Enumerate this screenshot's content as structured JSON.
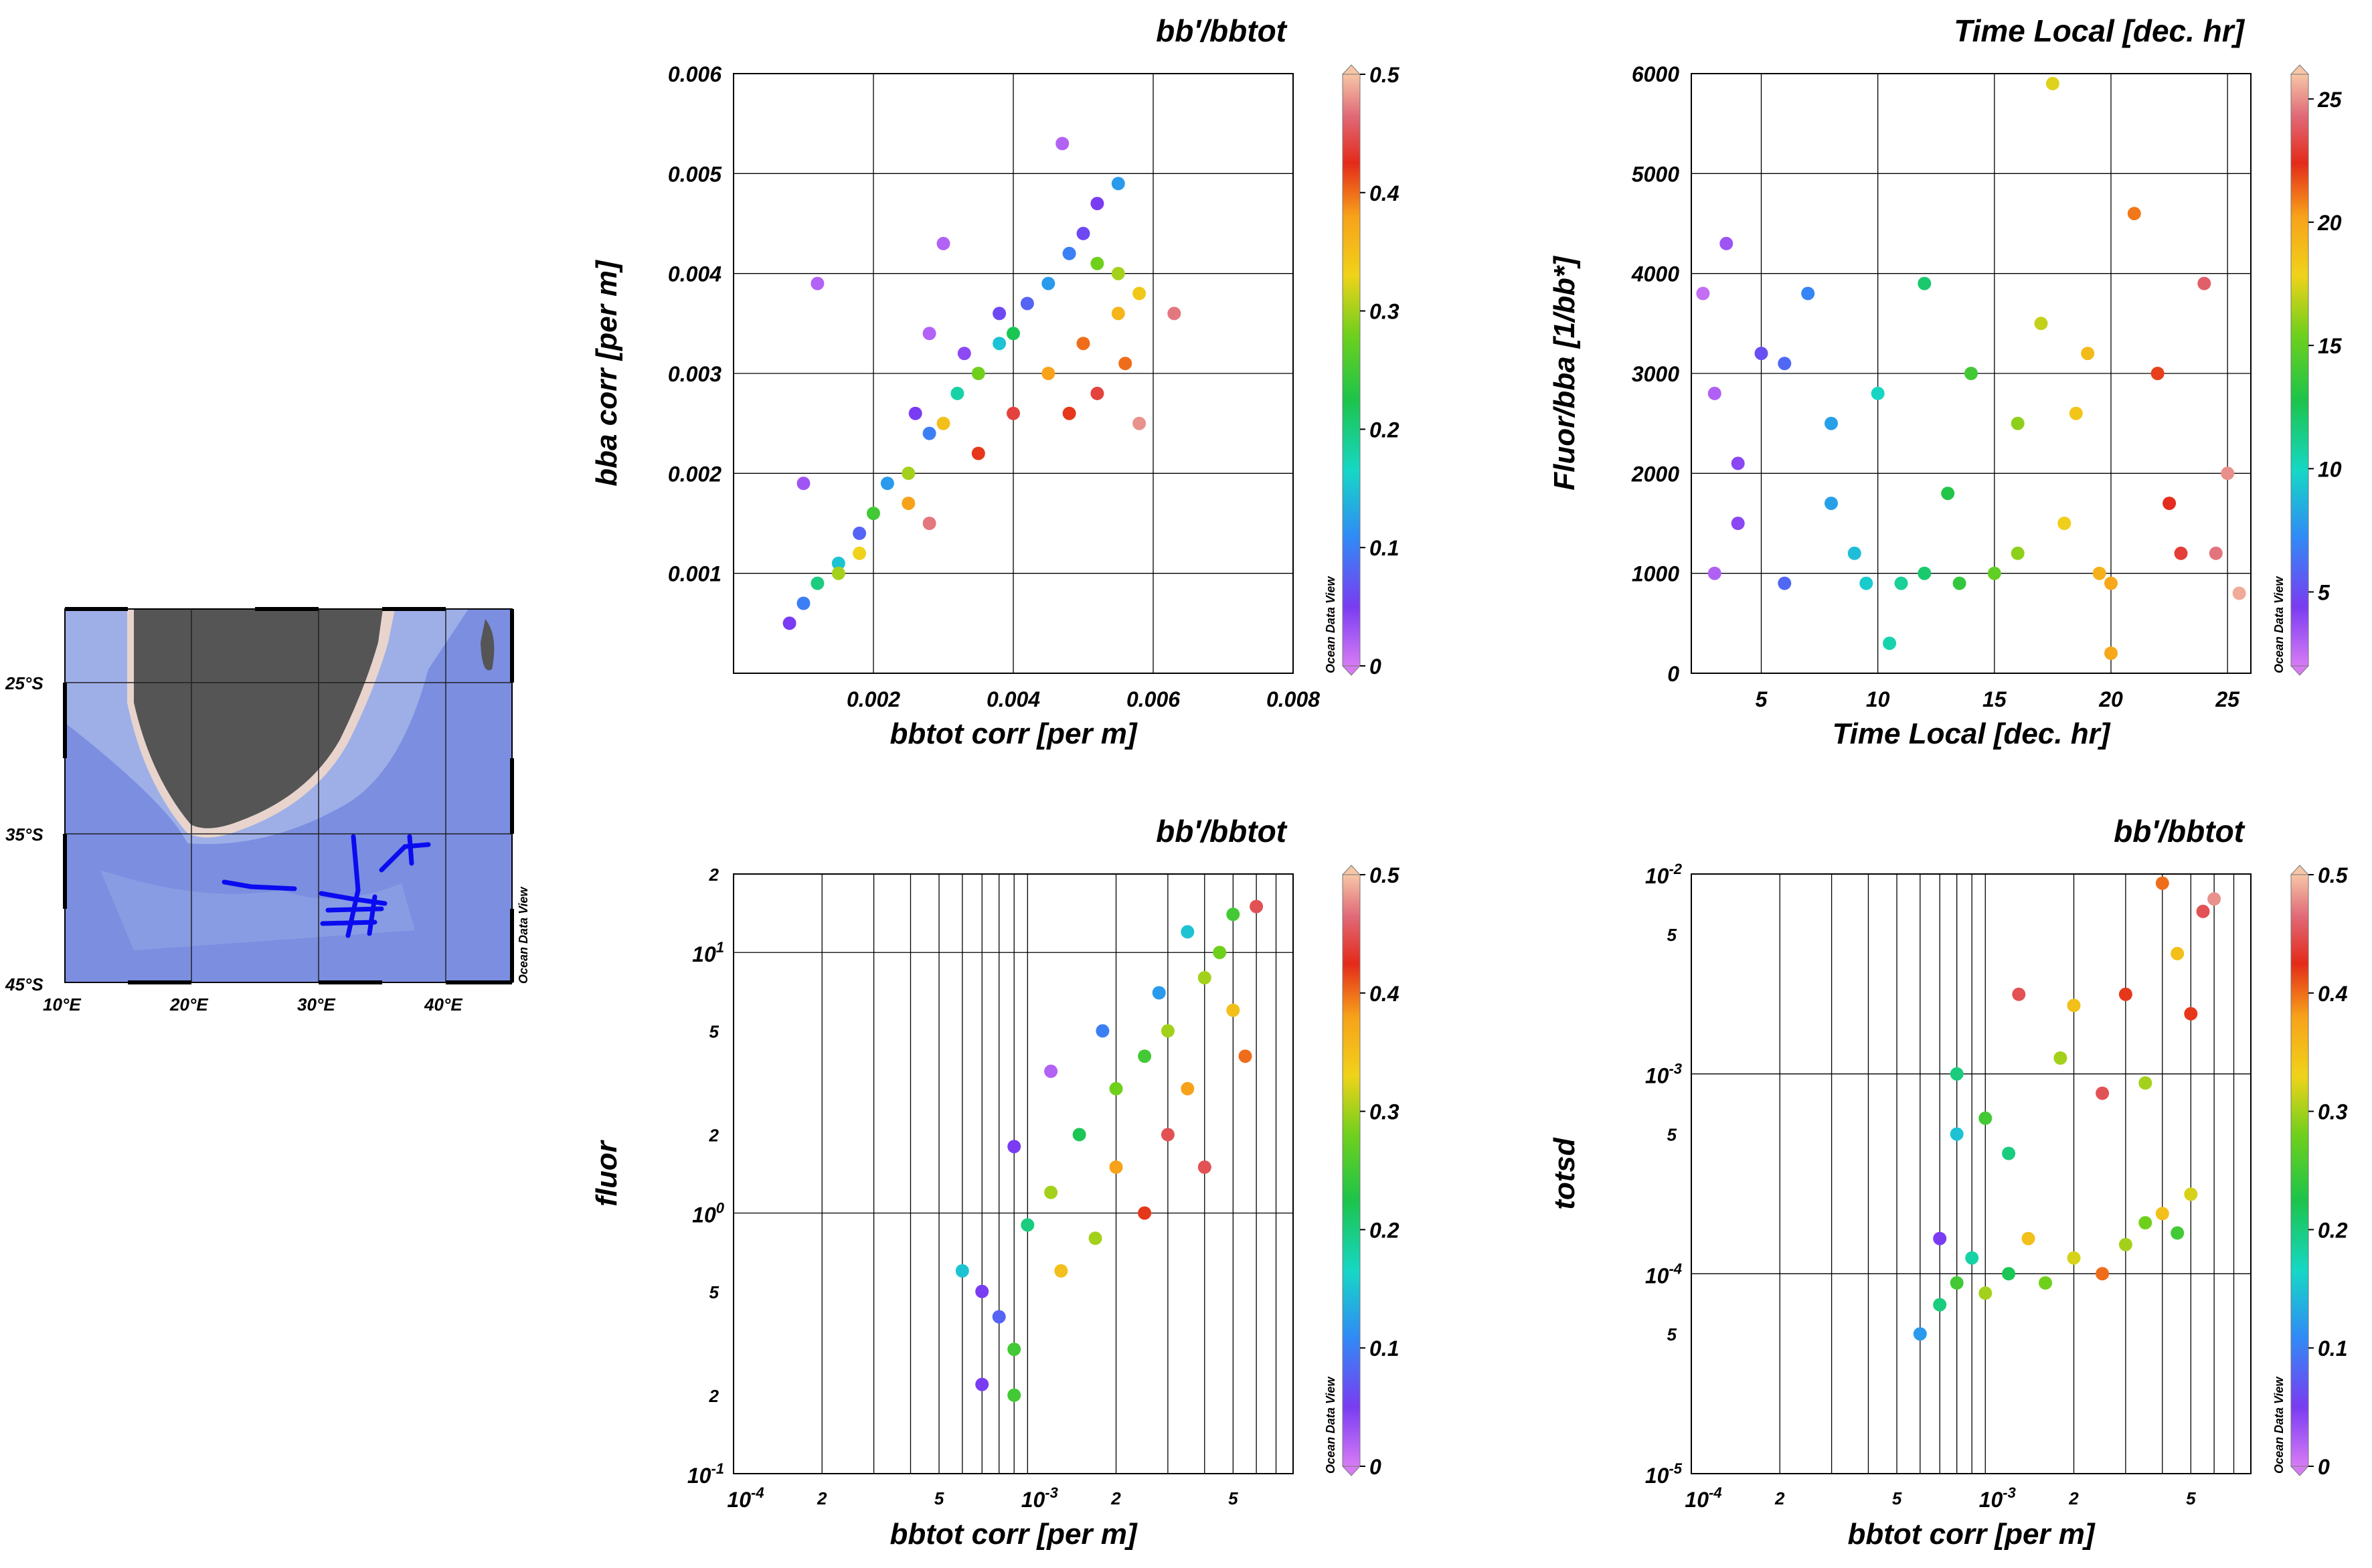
{
  "map": {
    "lat_labels": [
      "25°S",
      "35°S",
      "45°S"
    ],
    "lon_labels": [
      "10°E",
      "20°E",
      "30°E",
      "40°E"
    ],
    "watermark": "Ocean Data View",
    "colors": {
      "land": "#555555",
      "coast": "#e8d4cc",
      "shelf": "#9fb0e8",
      "deep": "#7b8ee0",
      "track": "#0b0bf0"
    }
  },
  "chart_data": [
    {
      "id": "p1",
      "type": "scatter",
      "title": "bb'/bbtot",
      "xlabel": "bbtot corr [per m]",
      "ylabel": "bba corr [per m]",
      "xscale": "linear",
      "yscale": "linear",
      "xlim": [
        0,
        0.008
      ],
      "ylim": [
        0,
        0.006
      ],
      "xticks": [
        0.002,
        0.004,
        0.006,
        0.008
      ],
      "xtick_labels": [
        "0.002",
        "0.004",
        "0.006",
        "0.008"
      ],
      "yticks": [
        0.001,
        0.002,
        0.003,
        0.004,
        0.005,
        0.006
      ],
      "ytick_labels": [
        "0.001",
        "0.002",
        "0.003",
        "0.004",
        "0.005",
        "0.006"
      ],
      "grid": true,
      "colorbar": {
        "label": "bb'/bbtot",
        "range": [
          0,
          0.5
        ],
        "ticks": [
          "0",
          "0.1",
          "0.2",
          "0.3",
          "0.4",
          "0.5"
        ]
      },
      "watermark": "Ocean Data View",
      "points": [
        [
          0.0008,
          0.0005,
          0.05
        ],
        [
          0.001,
          0.0007,
          0.1
        ],
        [
          0.0012,
          0.0009,
          0.2
        ],
        [
          0.0015,
          0.0011,
          0.15
        ],
        [
          0.0018,
          0.0014,
          0.08
        ],
        [
          0.002,
          0.0016,
          0.25
        ],
        [
          0.0022,
          0.0019,
          0.12
        ],
        [
          0.0025,
          0.002,
          0.3
        ],
        [
          0.0028,
          0.0024,
          0.1
        ],
        [
          0.003,
          0.0025,
          0.35
        ],
        [
          0.0032,
          0.0028,
          0.18
        ],
        [
          0.0035,
          0.003,
          0.28
        ],
        [
          0.0038,
          0.0033,
          0.15
        ],
        [
          0.004,
          0.0034,
          0.22
        ],
        [
          0.0042,
          0.0037,
          0.08
        ],
        [
          0.0045,
          0.0039,
          0.12
        ],
        [
          0.0048,
          0.0042,
          0.1
        ],
        [
          0.005,
          0.0044,
          0.06
        ],
        [
          0.0052,
          0.0047,
          0.05
        ],
        [
          0.0055,
          0.0049,
          0.12
        ],
        [
          0.0045,
          0.003,
          0.38
        ],
        [
          0.005,
          0.0033,
          0.4
        ],
        [
          0.0055,
          0.0036,
          0.36
        ],
        [
          0.0058,
          0.0038,
          0.34
        ],
        [
          0.0048,
          0.0026,
          0.42
        ],
        [
          0.0052,
          0.0028,
          0.44
        ],
        [
          0.0056,
          0.0031,
          0.4
        ],
        [
          0.0063,
          0.0036,
          0.47
        ],
        [
          0.0058,
          0.0025,
          0.48
        ],
        [
          0.0052,
          0.0041,
          0.28
        ],
        [
          0.0055,
          0.004,
          0.3
        ],
        [
          0.0047,
          0.0053,
          0.02
        ],
        [
          0.0012,
          0.0039,
          0.02
        ],
        [
          0.003,
          0.0043,
          0.02
        ],
        [
          0.0028,
          0.0034,
          0.02
        ],
        [
          0.001,
          0.0019,
          0.03
        ],
        [
          0.0028,
          0.0015,
          0.47
        ],
        [
          0.0035,
          0.0022,
          0.42
        ],
        [
          0.004,
          0.0026,
          0.44
        ],
        [
          0.0025,
          0.0017,
          0.38
        ],
        [
          0.0018,
          0.0012,
          0.33
        ],
        [
          0.0015,
          0.001,
          0.3
        ],
        [
          0.0033,
          0.0032,
          0.04
        ],
        [
          0.0038,
          0.0036,
          0.06
        ],
        [
          0.0026,
          0.0026,
          0.05
        ]
      ]
    },
    {
      "id": "p2",
      "type": "scatter",
      "title": "Time Local  [dec. hr]",
      "xlabel": "Time Local  [dec. hr]",
      "ylabel": "Fluor/bba [1/bb*]",
      "xscale": "linear",
      "yscale": "linear",
      "xlim": [
        2,
        26
      ],
      "ylim": [
        0,
        6000
      ],
      "xticks": [
        5,
        10,
        15,
        20,
        25
      ],
      "xtick_labels": [
        "5",
        "10",
        "15",
        "20",
        "25"
      ],
      "yticks": [
        0,
        1000,
        2000,
        3000,
        4000,
        5000,
        6000
      ],
      "ytick_labels": [
        "0",
        "1000",
        "2000",
        "3000",
        "4000",
        "5000",
        "6000"
      ],
      "grid": true,
      "colorbar": {
        "label": "Time Local  [dec. hr]",
        "range": [
          2,
          26
        ],
        "ticks": [
          "5",
          "10",
          "15",
          "20",
          "25"
        ],
        "tick_values": [
          5,
          10,
          15,
          20,
          25
        ]
      },
      "watermark": "Ocean Data View",
      "points": [
        [
          2.5,
          3800,
          2.5
        ],
        [
          3,
          2800,
          3
        ],
        [
          3.5,
          4300,
          3.5
        ],
        [
          4,
          1500,
          4
        ],
        [
          5,
          3200,
          5
        ],
        [
          6,
          900,
          6
        ],
        [
          7,
          3800,
          7
        ],
        [
          8,
          2500,
          8
        ],
        [
          9,
          1200,
          9
        ],
        [
          10,
          2800,
          10
        ],
        [
          10.5,
          300,
          10.5
        ],
        [
          11,
          900,
          11
        ],
        [
          12,
          3900,
          12
        ],
        [
          13,
          1800,
          13
        ],
        [
          14,
          3000,
          14
        ],
        [
          15,
          1000,
          15
        ],
        [
          16,
          2500,
          16
        ],
        [
          17,
          3500,
          17
        ],
        [
          17.5,
          5900,
          17.5
        ],
        [
          18,
          1500,
          18
        ],
        [
          19,
          3200,
          19
        ],
        [
          20,
          900,
          20
        ],
        [
          20,
          200,
          20
        ],
        [
          21,
          4600,
          21
        ],
        [
          22,
          3000,
          22
        ],
        [
          23,
          1200,
          23
        ],
        [
          24,
          3900,
          24
        ],
        [
          25,
          2000,
          25
        ],
        [
          25.5,
          800,
          25.5
        ],
        [
          3,
          1000,
          3
        ],
        [
          4,
          2100,
          4
        ],
        [
          6,
          3100,
          6
        ],
        [
          8,
          1700,
          8
        ],
        [
          9.5,
          900,
          9.5
        ],
        [
          12,
          1000,
          12
        ],
        [
          13.5,
          900,
          13.5
        ],
        [
          16,
          1200,
          16
        ],
        [
          18.5,
          2600,
          18.5
        ],
        [
          19.5,
          1000,
          19.5
        ],
        [
          22.5,
          1700,
          22.5
        ],
        [
          24.5,
          1200,
          24.5
        ]
      ]
    },
    {
      "id": "p3",
      "type": "scatter",
      "title": "bb'/bbtot",
      "xlabel": "bbtot corr [per m]",
      "ylabel": "fluor",
      "xscale": "log",
      "yscale": "log",
      "xlim": [
        0.0001,
        0.008
      ],
      "ylim": [
        0.1,
        20
      ],
      "xtick_labels": [
        "10-4",
        "2",
        "5",
        "10-3",
        "2",
        "5"
      ],
      "ytick_labels": [
        "10-1",
        "2",
        "5",
        "10^0",
        "2",
        "5",
        "10^1",
        "2"
      ],
      "grid": true,
      "colorbar": {
        "label": "bb'/bbtot",
        "range": [
          0,
          0.5
        ],
        "ticks": [
          "0",
          "0.1",
          "0.2",
          "0.3",
          "0.4",
          "0.5"
        ]
      },
      "watermark": "Ocean Data View",
      "points": [
        [
          0.0006,
          0.6,
          0.15
        ],
        [
          0.0007,
          0.5,
          0.05
        ],
        [
          0.0007,
          0.22,
          0.05
        ],
        [
          0.0008,
          0.4,
          0.08
        ],
        [
          0.0009,
          0.3,
          0.25
        ],
        [
          0.0009,
          0.2,
          0.25
        ],
        [
          0.001,
          0.9,
          0.2
        ],
        [
          0.0012,
          1.2,
          0.3
        ],
        [
          0.0013,
          0.6,
          0.35
        ],
        [
          0.0015,
          2.0,
          0.22
        ],
        [
          0.0017,
          0.8,
          0.3
        ],
        [
          0.002,
          3.0,
          0.28
        ],
        [
          0.002,
          1.5,
          0.38
        ],
        [
          0.0025,
          1.0,
          0.42
        ],
        [
          0.0025,
          4.0,
          0.25
        ],
        [
          0.003,
          2.0,
          0.45
        ],
        [
          0.003,
          5.0,
          0.3
        ],
        [
          0.0035,
          3.0,
          0.38
        ],
        [
          0.004,
          8.0,
          0.3
        ],
        [
          0.004,
          1.5,
          0.45
        ],
        [
          0.0045,
          10.0,
          0.28
        ],
        [
          0.005,
          14.0,
          0.25
        ],
        [
          0.005,
          6.0,
          0.35
        ],
        [
          0.0055,
          4.0,
          0.4
        ],
        [
          0.006,
          15.0,
          0.45
        ],
        [
          0.0009,
          1.8,
          0.05
        ],
        [
          0.0012,
          3.5,
          0.02
        ],
        [
          0.0018,
          5.0,
          0.1
        ],
        [
          0.0028,
          7.0,
          0.12
        ],
        [
          0.0035,
          12.0,
          0.15
        ]
      ]
    },
    {
      "id": "p4",
      "type": "scatter",
      "title": "bb'/bbtot",
      "xlabel": "bbtot corr [per m]",
      "ylabel": "totsd",
      "xscale": "log",
      "yscale": "log",
      "xlim": [
        0.0001,
        0.008
      ],
      "ylim": [
        1e-05,
        0.01
      ],
      "xtick_labels": [
        "10-4",
        "2",
        "5",
        "10-3",
        "2",
        "5"
      ],
      "ytick_labels": [
        "10-5",
        "5",
        "10-4",
        "5",
        "10-3",
        "5",
        "10-2"
      ],
      "grid": true,
      "colorbar": {
        "label": "bb'/bbtot",
        "range": [
          0,
          0.5
        ],
        "ticks": [
          "0",
          "0.1",
          "0.2",
          "0.3",
          "0.4",
          "0.5"
        ]
      },
      "watermark": "Ocean Data View",
      "points": [
        [
          0.0006,
          5e-05,
          0.12
        ],
        [
          0.0007,
          7e-05,
          0.2
        ],
        [
          0.0008,
          9e-05,
          0.25
        ],
        [
          0.0009,
          0.00012,
          0.18
        ],
        [
          0.001,
          8e-05,
          0.3
        ],
        [
          0.0012,
          0.0001,
          0.22
        ],
        [
          0.0014,
          0.00015,
          0.35
        ],
        [
          0.0016,
          9e-05,
          0.28
        ],
        [
          0.002,
          0.00012,
          0.32
        ],
        [
          0.0025,
          0.0001,
          0.4
        ],
        [
          0.003,
          0.00014,
          0.3
        ],
        [
          0.0035,
          0.00018,
          0.28
        ],
        [
          0.004,
          0.0002,
          0.35
        ],
        [
          0.0045,
          0.00016,
          0.25
        ],
        [
          0.005,
          0.00025,
          0.32
        ],
        [
          0.0008,
          0.001,
          0.2
        ],
        [
          0.001,
          0.0006,
          0.25
        ],
        [
          0.0013,
          0.0025,
          0.45
        ],
        [
          0.0018,
          0.0012,
          0.3
        ],
        [
          0.002,
          0.0022,
          0.35
        ],
        [
          0.0025,
          0.0008,
          0.45
        ],
        [
          0.003,
          0.0025,
          0.42
        ],
        [
          0.0035,
          0.0009,
          0.3
        ],
        [
          0.004,
          0.009,
          0.4
        ],
        [
          0.0045,
          0.004,
          0.35
        ],
        [
          0.0055,
          0.0065,
          0.45
        ],
        [
          0.006,
          0.0075,
          0.48
        ],
        [
          0.0008,
          0.0005,
          0.15
        ],
        [
          0.0012,
          0.0004,
          0.2
        ],
        [
          0.005,
          0.002,
          0.42
        ],
        [
          0.0007,
          0.00015,
          0.05
        ]
      ]
    }
  ]
}
